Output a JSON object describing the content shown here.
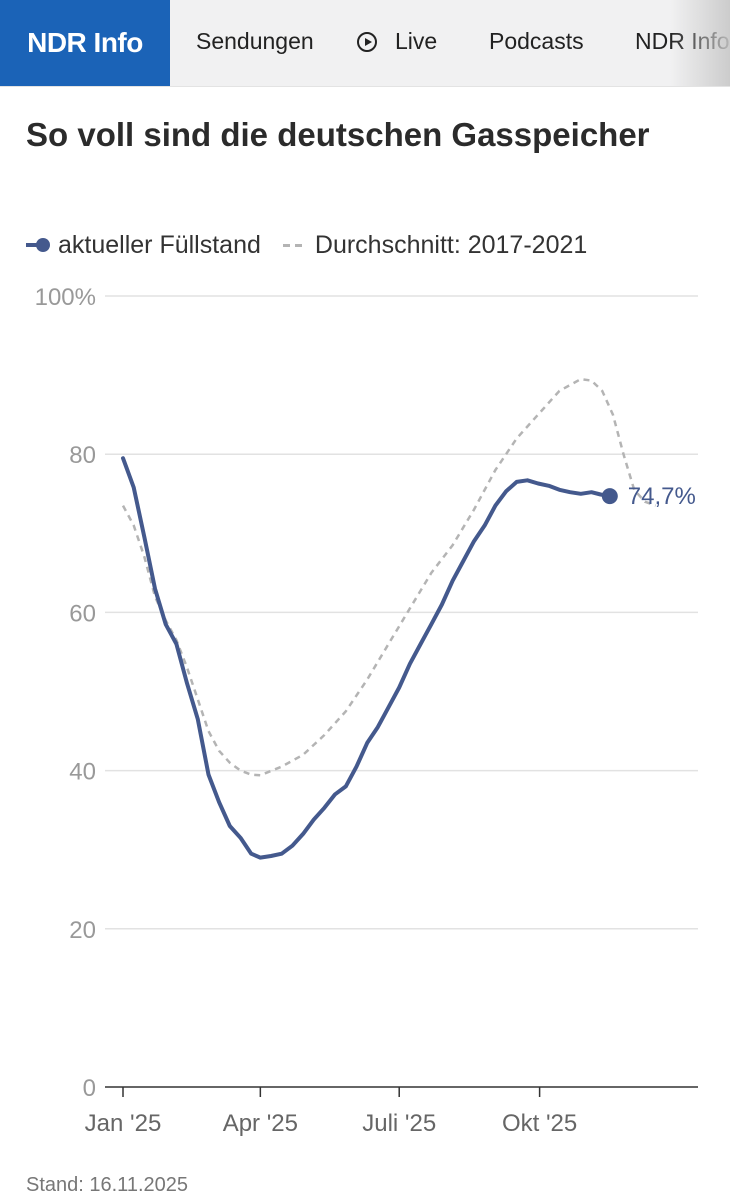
{
  "header": {
    "logo": "NDR Info",
    "nav": [
      "Sendungen",
      "Live",
      "Podcasts",
      "NDR Info"
    ]
  },
  "title": "So voll sind die deutschen Gasspeicher",
  "footer": "Stand: 16.11.2025",
  "colors": {
    "current": "#44598d",
    "average": "#b4b4b4",
    "brand": "#1b63b7"
  },
  "chart_data": {
    "type": "line",
    "xlabel": "",
    "ylabel": "",
    "ylim": [
      0,
      100
    ],
    "xlim": [
      "2025-01-01",
      "2026-01-01"
    ],
    "y_ticks": [
      0,
      20,
      40,
      60,
      80,
      100
    ],
    "y_tick_labels": [
      "0",
      "20",
      "40",
      "60",
      "80",
      "100%"
    ],
    "x_ticks": [
      "2025-01-01",
      "2025-04-01",
      "2025-07-01",
      "2025-10-01"
    ],
    "x_tick_labels": [
      "Jan '25",
      "Apr '25",
      "Juli '25",
      "Okt '25"
    ],
    "grid": true,
    "legend_position": "top-left",
    "end_label": "74,7%",
    "series": [
      {
        "name": "aktueller Füllstand",
        "style": "solid",
        "points": [
          [
            "2025-01-01",
            79.5
          ],
          [
            "2025-01-08",
            75.8
          ],
          [
            "2025-01-15",
            69.5
          ],
          [
            "2025-01-22",
            63.0
          ],
          [
            "2025-01-29",
            58.5
          ],
          [
            "2025-02-05",
            56.0
          ],
          [
            "2025-02-12",
            51.0
          ],
          [
            "2025-02-19",
            46.5
          ],
          [
            "2025-02-26",
            39.5
          ],
          [
            "2025-03-05",
            36.0
          ],
          [
            "2025-03-12",
            33.0
          ],
          [
            "2025-03-19",
            31.5
          ],
          [
            "2025-03-26",
            29.5
          ],
          [
            "2025-04-01",
            29.0
          ],
          [
            "2025-04-08",
            29.2
          ],
          [
            "2025-04-15",
            29.5
          ],
          [
            "2025-04-22",
            30.5
          ],
          [
            "2025-04-29",
            32.0
          ],
          [
            "2025-05-06",
            33.8
          ],
          [
            "2025-05-13",
            35.3
          ],
          [
            "2025-05-20",
            37.0
          ],
          [
            "2025-05-27",
            38.0
          ],
          [
            "2025-06-03",
            40.5
          ],
          [
            "2025-06-10",
            43.5
          ],
          [
            "2025-06-17",
            45.5
          ],
          [
            "2025-06-24",
            48.0
          ],
          [
            "2025-07-01",
            50.5
          ],
          [
            "2025-07-08",
            53.5
          ],
          [
            "2025-07-15",
            56.0
          ],
          [
            "2025-07-22",
            58.5
          ],
          [
            "2025-07-29",
            61.0
          ],
          [
            "2025-08-05",
            64.0
          ],
          [
            "2025-08-12",
            66.5
          ],
          [
            "2025-08-19",
            69.0
          ],
          [
            "2025-08-26",
            71.0
          ],
          [
            "2025-09-02",
            73.5
          ],
          [
            "2025-09-09",
            75.3
          ],
          [
            "2025-09-16",
            76.5
          ],
          [
            "2025-09-23",
            76.7
          ],
          [
            "2025-09-30",
            76.3
          ],
          [
            "2025-10-07",
            76.0
          ],
          [
            "2025-10-14",
            75.5
          ],
          [
            "2025-10-21",
            75.2
          ],
          [
            "2025-10-28",
            75.0
          ],
          [
            "2025-11-04",
            75.2
          ],
          [
            "2025-11-10",
            74.9
          ],
          [
            "2025-11-16",
            74.7
          ]
        ]
      },
      {
        "name": "Durchschnitt: 2017-2021",
        "style": "dashed",
        "points": [
          [
            "2025-01-01",
            73.5
          ],
          [
            "2025-01-08",
            71.0
          ],
          [
            "2025-01-15",
            67.0
          ],
          [
            "2025-01-22",
            62.0
          ],
          [
            "2025-01-29",
            59.0
          ],
          [
            "2025-02-05",
            56.5
          ],
          [
            "2025-02-12",
            53.0
          ],
          [
            "2025-02-19",
            49.0
          ],
          [
            "2025-02-26",
            45.0
          ],
          [
            "2025-03-05",
            42.5
          ],
          [
            "2025-03-12",
            41.0
          ],
          [
            "2025-03-19",
            40.0
          ],
          [
            "2025-03-26",
            39.5
          ],
          [
            "2025-04-01",
            39.4
          ],
          [
            "2025-04-15",
            40.5
          ],
          [
            "2025-04-29",
            42.0
          ],
          [
            "2025-05-13",
            44.5
          ],
          [
            "2025-05-27",
            47.5
          ],
          [
            "2025-06-10",
            51.5
          ],
          [
            "2025-06-24",
            56.0
          ],
          [
            "2025-07-08",
            60.5
          ],
          [
            "2025-07-22",
            65.0
          ],
          [
            "2025-08-05",
            68.5
          ],
          [
            "2025-08-19",
            73.0
          ],
          [
            "2025-09-02",
            78.0
          ],
          [
            "2025-09-16",
            82.0
          ],
          [
            "2025-09-30",
            85.0
          ],
          [
            "2025-10-14",
            88.0
          ],
          [
            "2025-10-28",
            89.5
          ],
          [
            "2025-11-04",
            89.3
          ],
          [
            "2025-11-11",
            88.0
          ],
          [
            "2025-11-18",
            85.0
          ],
          [
            "2025-11-25",
            80.0
          ],
          [
            "2025-12-02",
            75.5
          ],
          [
            "2025-12-09",
            74.0
          ],
          [
            "2025-12-16",
            73.5
          ]
        ]
      }
    ]
  }
}
